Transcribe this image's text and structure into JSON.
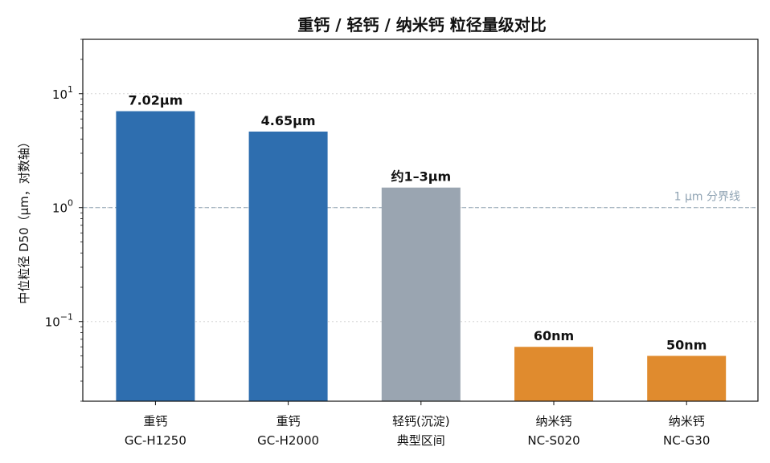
{
  "chart_data": {
    "type": "bar",
    "title": "重钙 / 轻钙 / 纳米钙 粒径量级对比",
    "ylabel": "中位粒径 D50（μm，对数轴）",
    "yscale": "log",
    "ylim": [
      0.02,
      30
    ],
    "yticks": [
      {
        "value": 0.1,
        "base": "10",
        "exp": "−1"
      },
      {
        "value": 1,
        "base": "10",
        "exp": "0"
      },
      {
        "value": 10,
        "base": "10",
        "exp": "1"
      }
    ],
    "grid": true,
    "categories": [
      [
        "重钙",
        "GC-H1250"
      ],
      [
        "重钙",
        "GC-H2000"
      ],
      [
        "轻钙(沉淀)",
        "典型区间"
      ],
      [
        "纳米钙",
        "NC-S020"
      ],
      [
        "纳米钙",
        "NC-G30"
      ]
    ],
    "values": [
      7.02,
      4.65,
      1.5,
      0.06,
      0.05
    ],
    "data_labels": [
      "7.02μm",
      "4.65μm",
      "约1–3μm",
      "60nm",
      "50nm"
    ],
    "colors": [
      "#2e6eaf",
      "#2e6eaf",
      "#9aa5b1",
      "#e08b2e",
      "#e08b2e"
    ],
    "reference_line": {
      "value": 1,
      "label": "1 μm 分界线",
      "color": "#8fa3b3"
    }
  }
}
